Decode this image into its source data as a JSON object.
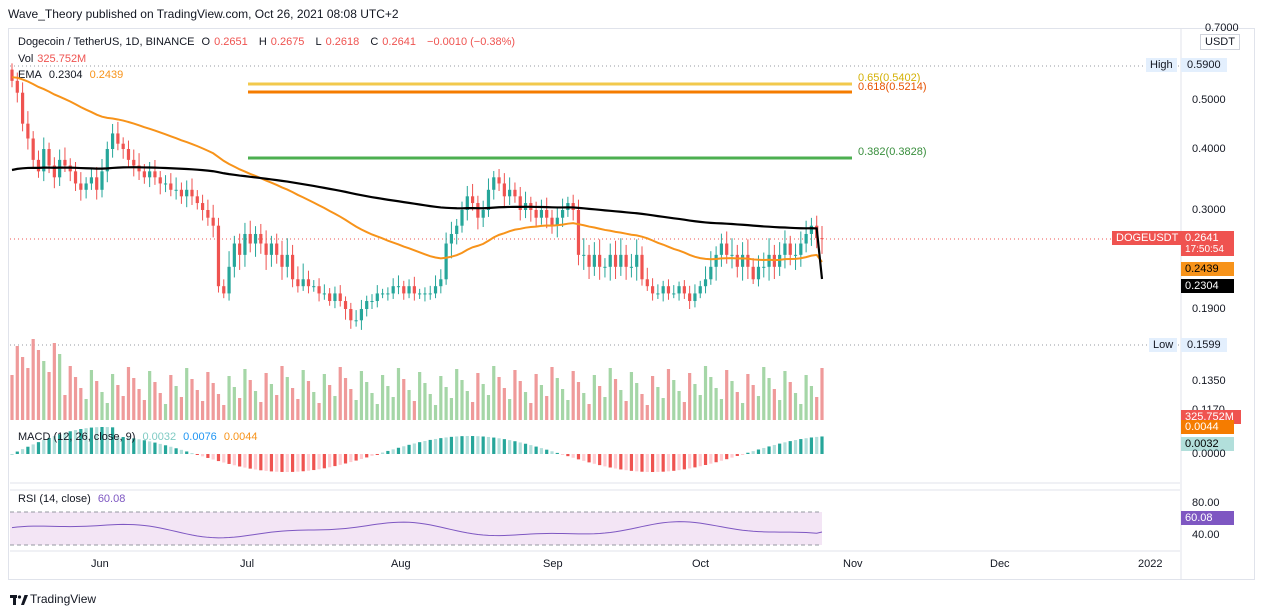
{
  "header": {
    "published": "Wave_Theory published on TradingView.com, Oct 26, 2021 08:08 UTC+2"
  },
  "legend": {
    "symbol": "Dogecoin / TetherUS, 1D, BINANCE",
    "o_label": "O",
    "o_value": "0.2651",
    "h_label": "H",
    "h_value": "0.2675",
    "l_label": "L",
    "l_value": "0.2618",
    "c_label": "C",
    "c_value": "0.2641",
    "change": "−0.0010 (−0.38%)",
    "vol_label": "Vol",
    "vol_value": "325.752M",
    "ema_label": "EMA",
    "ema_value1": "0.2304",
    "ema_value2": "0.2439"
  },
  "macd_legend": {
    "label": "MACD (12, 26, close, 9)",
    "v1": "0.0032",
    "v2": "0.0076",
    "v3": "0.0044"
  },
  "rsi_legend": {
    "label": "RSI (14, close)",
    "value": "60.08"
  },
  "price_axis": {
    "currency": "USDT",
    "ticks": [
      "0.7000",
      "0.5000",
      "0.4000",
      "0.3000",
      "0.1900",
      "0.1350",
      "0.1170",
      "0.0000"
    ],
    "high_label": "High",
    "high_value": "0.5900",
    "low_label": "Low",
    "low_value": "0.1599",
    "symbol_tag": "DOGEUSDT",
    "last_price": "0.2641",
    "countdown": "17:50:54",
    "ema_orange": "0.2439",
    "ema_black": "0.2304",
    "volume_tag": "325.752M",
    "macd_tag_orange": "0.0044",
    "macd_tag_teal": "0.0032",
    "rsi_ticks": [
      "80.00",
      "40.00"
    ],
    "rsi_tag": "60.08"
  },
  "fib": {
    "level_065": "0.65(0.5402)",
    "level_0618": "0.618(0.5214)",
    "level_0382": "0.382(0.3828)"
  },
  "time_axis": [
    "Jun",
    "Jul",
    "Aug",
    "Sep",
    "Oct",
    "Nov",
    "Dec",
    "2022"
  ],
  "footer": {
    "brand": "TradingView"
  },
  "colors": {
    "up": "#26a69a",
    "down": "#ef5350",
    "ema_fast": "#f7931a",
    "ema_slow": "#000000",
    "fib_gold": "#f2c94c",
    "fib_orange": "#f57c00",
    "fib_green": "#4caf50",
    "rsi_fill": "#f3e5f5",
    "rsi_line": "#7e57c2",
    "macd_blue": "#2196f3",
    "macd_orange": "#ff9800"
  },
  "chart_data": {
    "type": "candlestick",
    "title": "Dogecoin / TetherUS, 1D, BINANCE",
    "x_labels": [
      "Jun",
      "Jul",
      "Aug",
      "Sep",
      "Oct",
      "Nov",
      "Dec",
      "2022"
    ],
    "ema_fast_last": 0.2439,
    "ema_slow_last": 0.2304,
    "last_close": 0.2641,
    "fib_levels": [
      {
        "ratio": 0.65,
        "price": 0.5402
      },
      {
        "ratio": 0.618,
        "price": 0.5214
      },
      {
        "ratio": 0.382,
        "price": 0.3828
      }
    ],
    "high": 0.59,
    "low": 0.1599,
    "closes": [
      0.55,
      0.52,
      0.45,
      0.42,
      0.38,
      0.36,
      0.4,
      0.37,
      0.35,
      0.38,
      0.37,
      0.36,
      0.34,
      0.33,
      0.34,
      0.35,
      0.33,
      0.36,
      0.4,
      0.43,
      0.41,
      0.4,
      0.38,
      0.37,
      0.36,
      0.35,
      0.36,
      0.35,
      0.34,
      0.34,
      0.33,
      0.33,
      0.32,
      0.33,
      0.32,
      0.31,
      0.3,
      0.29,
      0.28,
      0.22,
      0.21,
      0.24,
      0.26,
      0.25,
      0.27,
      0.26,
      0.27,
      0.26,
      0.25,
      0.26,
      0.25,
      0.24,
      0.25,
      0.23,
      0.22,
      0.23,
      0.22,
      0.22,
      0.21,
      0.21,
      0.2,
      0.21,
      0.2,
      0.19,
      0.18,
      0.18,
      0.19,
      0.2,
      0.2,
      0.21,
      0.21,
      0.21,
      0.22,
      0.22,
      0.21,
      0.22,
      0.21,
      0.21,
      0.21,
      0.21,
      0.22,
      0.23,
      0.26,
      0.27,
      0.28,
      0.3,
      0.32,
      0.31,
      0.29,
      0.3,
      0.33,
      0.35,
      0.34,
      0.32,
      0.33,
      0.32,
      0.3,
      0.31,
      0.3,
      0.29,
      0.3,
      0.29,
      0.28,
      0.29,
      0.3,
      0.31,
      0.3,
      0.25,
      0.25,
      0.24,
      0.25,
      0.24,
      0.24,
      0.25,
      0.24,
      0.25,
      0.24,
      0.24,
      0.25,
      0.23,
      0.22,
      0.21,
      0.21,
      0.22,
      0.21,
      0.21,
      0.22,
      0.21,
      0.2,
      0.21,
      0.22,
      0.23,
      0.24,
      0.25,
      0.26,
      0.25,
      0.25,
      0.24,
      0.25,
      0.24,
      0.23,
      0.24,
      0.24,
      0.25,
      0.24,
      0.25,
      0.26,
      0.25,
      0.25,
      0.26,
      0.27,
      0.28,
      0.2651,
      0.2641
    ],
    "rsi_last": 60.08,
    "macd": {
      "macd": 0.0076,
      "signal": 0.0044,
      "hist": 0.0032
    }
  }
}
